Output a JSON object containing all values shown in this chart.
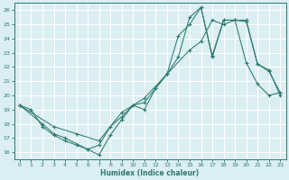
{
  "xlabel": "Humidex (Indice chaleur)",
  "bg_color": "#daeef3",
  "line_color": "#2d7a6e",
  "grid_color": "#b8d8dc",
  "xlim": [
    -0.5,
    23.5
  ],
  "ylim": [
    15.5,
    26.5
  ],
  "xticks": [
    0,
    1,
    2,
    3,
    4,
    5,
    6,
    7,
    8,
    9,
    10,
    11,
    12,
    13,
    14,
    15,
    16,
    17,
    18,
    19,
    20,
    21,
    22,
    23
  ],
  "yticks": [
    16,
    17,
    18,
    19,
    20,
    21,
    22,
    23,
    24,
    25,
    26
  ],
  "line1_x": [
    0,
    1,
    2,
    3,
    4,
    5,
    6,
    7,
    8,
    9,
    10,
    11,
    12,
    13,
    14,
    15,
    16,
    17,
    18,
    19,
    20,
    21,
    22,
    23
  ],
  "line1_y": [
    19.3,
    19.0,
    17.8,
    17.2,
    16.8,
    16.5,
    16.2,
    16.5,
    17.8,
    18.5,
    19.3,
    19.5,
    20.5,
    21.5,
    22.7,
    25.5,
    26.2,
    22.8,
    25.3,
    25.3,
    25.3,
    22.2,
    21.8,
    20.0
  ],
  "line2_x": [
    0,
    2,
    3,
    4,
    6,
    7,
    8,
    9,
    10,
    11,
    12,
    13,
    14,
    15,
    16,
    17,
    18,
    19,
    20,
    21,
    22,
    23
  ],
  "line2_y": [
    19.3,
    18.0,
    17.3,
    17.0,
    16.2,
    15.8,
    17.2,
    18.3,
    19.3,
    19.0,
    20.5,
    21.5,
    24.2,
    25.0,
    26.2,
    22.7,
    25.3,
    25.3,
    25.2,
    22.2,
    21.7,
    20.2
  ],
  "line3_x": [
    0,
    3,
    5,
    7,
    9,
    11,
    13,
    15,
    16,
    17,
    18,
    19,
    20,
    21,
    22,
    23
  ],
  "line3_y": [
    19.3,
    17.8,
    17.3,
    16.8,
    18.8,
    19.8,
    21.5,
    23.2,
    23.8,
    25.3,
    25.0,
    25.3,
    22.3,
    20.8,
    20.0,
    20.2
  ]
}
